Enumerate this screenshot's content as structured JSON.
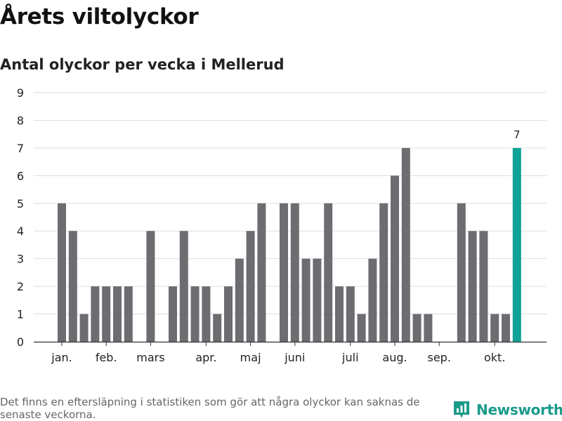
{
  "title": "Årets viltolyckor",
  "subtitle": "Antal olyckor per vecka i Mellerud",
  "footnote": "Det finns en eftersläpning i statistiken som gör att några olyckor kan saknas de senaste veckorna.",
  "brand": {
    "name": "Newsworthy",
    "icon": "bar-chart-logo-icon"
  },
  "colors": {
    "bar": "#6d6c71",
    "highlight": "#0fa196",
    "grid": "#dddddd",
    "axis": "#333333",
    "brand": "#1a9a8a"
  },
  "chart_data": {
    "type": "bar",
    "title": "Antal olyckor per vecka i Mellerud",
    "xlabel": "",
    "ylabel": "",
    "ylim": [
      0,
      9
    ],
    "yticks": [
      0,
      1,
      2,
      3,
      4,
      5,
      6,
      7,
      8,
      9
    ],
    "grid": true,
    "values": [
      5,
      4,
      1,
      2,
      2,
      2,
      2,
      0,
      4,
      0,
      2,
      4,
      2,
      2,
      1,
      2,
      3,
      4,
      5,
      0,
      5,
      5,
      3,
      3,
      5,
      2,
      2,
      1,
      3,
      5,
      6,
      7,
      1,
      1,
      0,
      0,
      5,
      4,
      4,
      1,
      1,
      7
    ],
    "highlight_index": 41,
    "highlight_label": "7",
    "month_labels": [
      {
        "label": "jan.",
        "week": 1
      },
      {
        "label": "feb.",
        "week": 5
      },
      {
        "label": "mars",
        "week": 9
      },
      {
        "label": "apr.",
        "week": 14
      },
      {
        "label": "maj",
        "week": 18
      },
      {
        "label": "juni",
        "week": 22
      },
      {
        "label": "juli",
        "week": 27
      },
      {
        "label": "aug.",
        "week": 31
      },
      {
        "label": "sep.",
        "week": 35
      },
      {
        "label": "okt.",
        "week": 40
      }
    ]
  }
}
